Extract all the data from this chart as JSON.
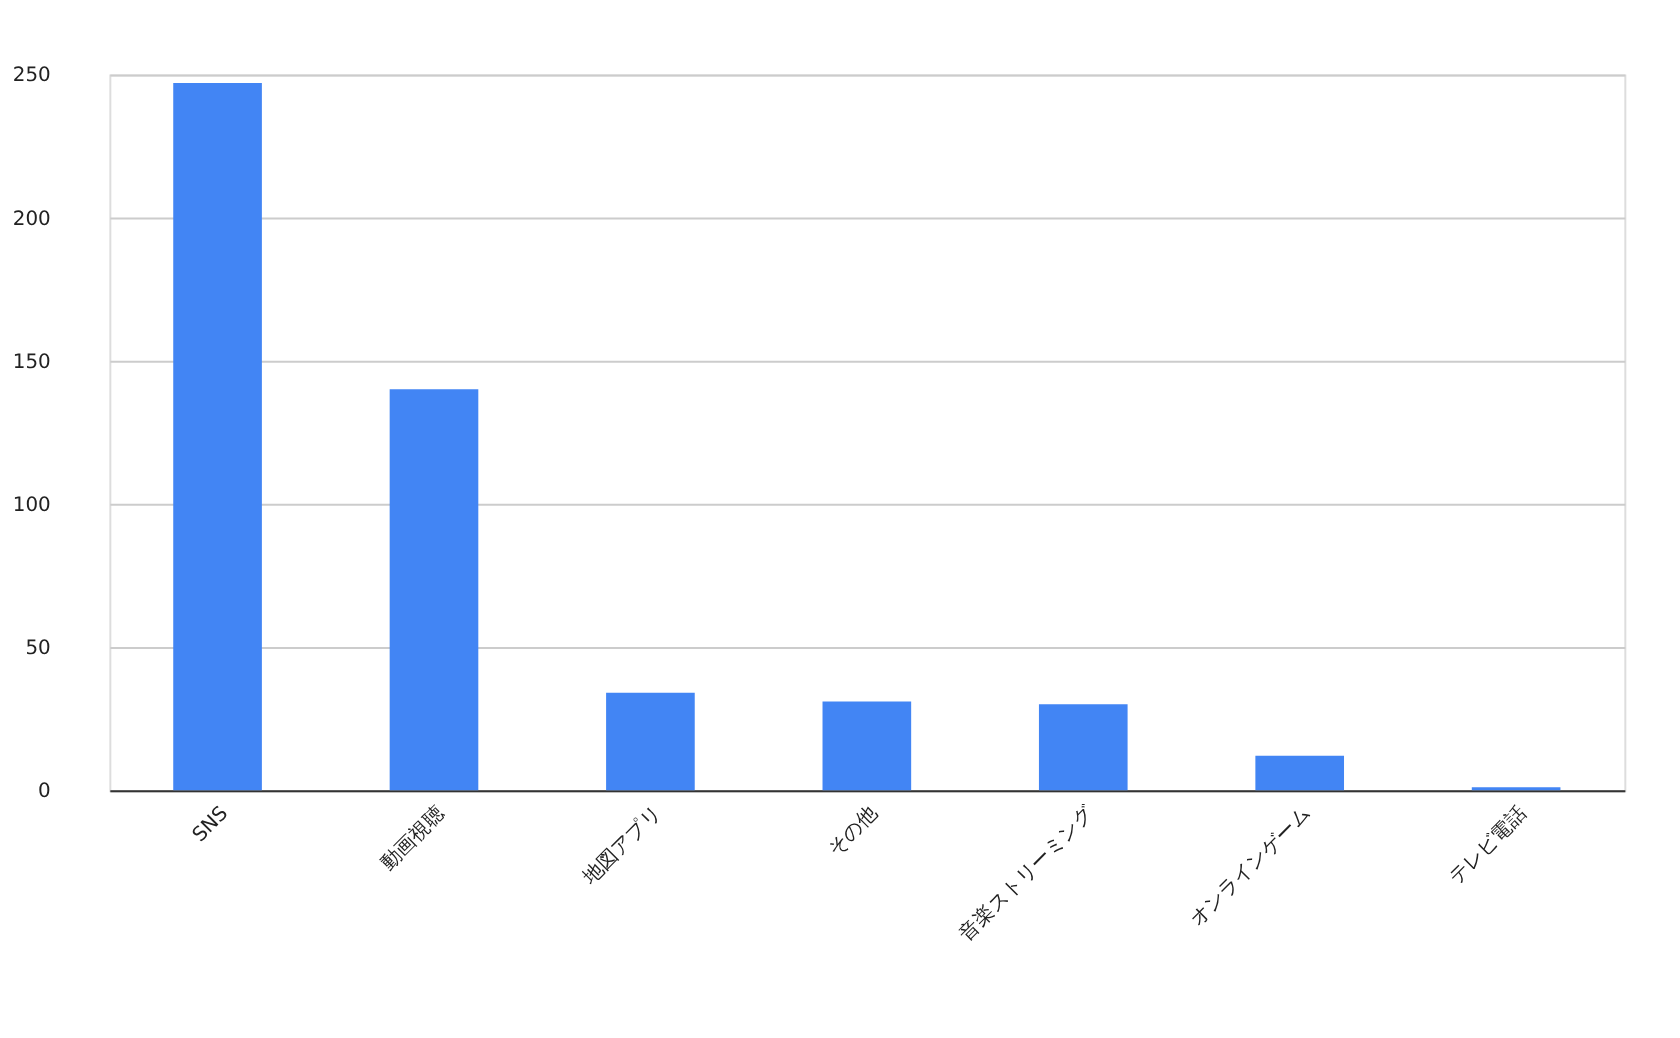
{
  "chart_data": {
    "type": "bar",
    "categories": [
      "SNS",
      "動画視聴",
      "地図アプリ",
      "その他",
      "音楽ストリーミング",
      "オンラインゲーム",
      "テレビ電話"
    ],
    "values": [
      247,
      140,
      34,
      31,
      30,
      12,
      1
    ],
    "color": "#4285f4",
    "ylim": [
      0,
      250
    ],
    "yticks": [
      0,
      50,
      100,
      150,
      200,
      250
    ],
    "grid": "y"
  }
}
